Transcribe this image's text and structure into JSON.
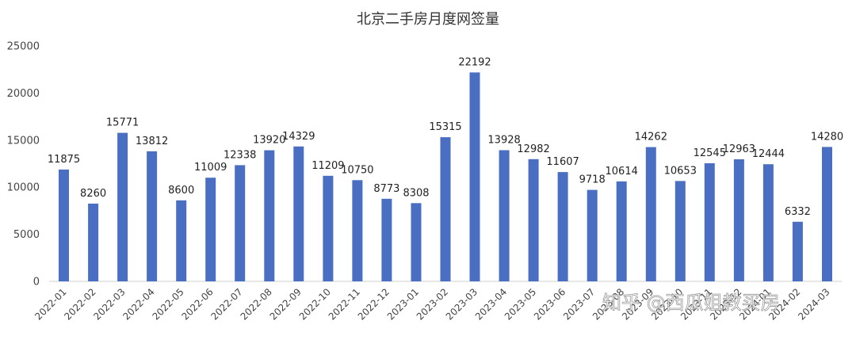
{
  "chart_data": {
    "type": "bar",
    "title": "北京二手房月度网签量",
    "xlabel": "",
    "ylabel": "",
    "ylim": [
      0,
      25000
    ],
    "yticks": [
      0,
      5000,
      10000,
      15000,
      20000,
      25000
    ],
    "grid": false,
    "legend": "none",
    "categories": [
      "2022-01",
      "2022-02",
      "2022-03",
      "2022-04",
      "2022-05",
      "2022-06",
      "2022-07",
      "2022-08",
      "2022-09",
      "2022-10",
      "2022-11",
      "2022-12",
      "2023-01",
      "2023-02",
      "2023-03",
      "2023-04",
      "2023-05",
      "2023-06",
      "2023-07",
      "2023-08",
      "2023-09",
      "2023-10",
      "2023-11",
      "2023-12",
      "2024-01",
      "2024-02",
      "2024-03"
    ],
    "values": [
      11875,
      8260,
      15771,
      13812,
      8600,
      11009,
      12338,
      13920,
      14329,
      11209,
      10750,
      8773,
      8308,
      15315,
      22192,
      13928,
      12982,
      11607,
      9718,
      10614,
      14262,
      10653,
      12545,
      12963,
      12444,
      6332,
      14280
    ],
    "colors": {
      "bar": "#4a6fc2"
    }
  },
  "watermark": "知乎 @西瓜姐教买房"
}
